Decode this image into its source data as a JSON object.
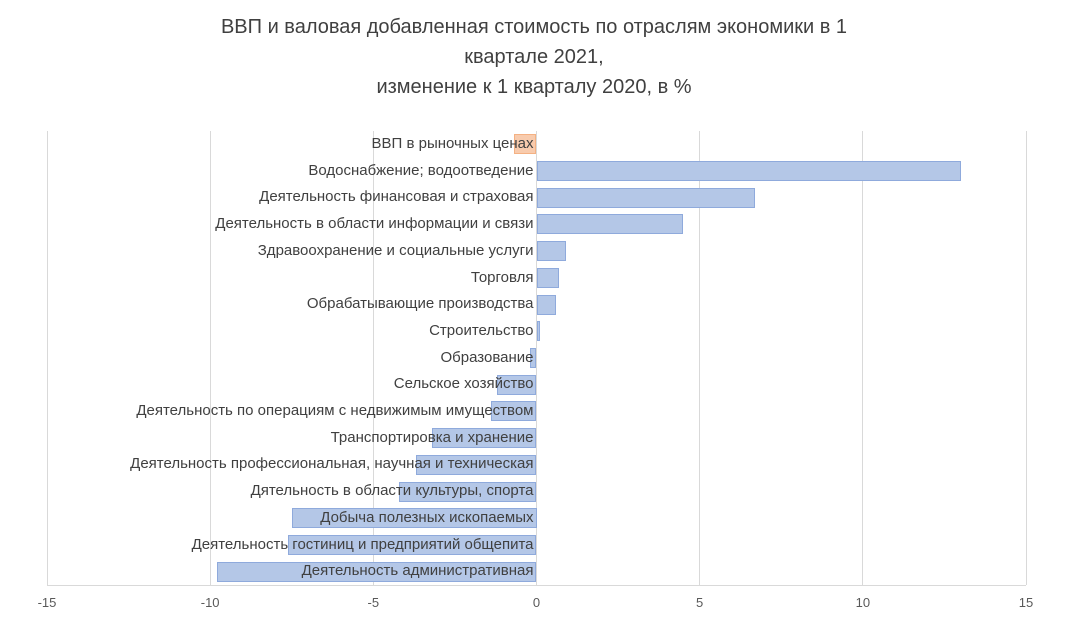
{
  "chart_data": {
    "type": "bar",
    "orientation": "horizontal",
    "title": "ВВП и валовая добавленная стоимость по отраслям экономики в 1\nквартале 2021,\nизменение к 1 кварталу 2020, в %",
    "categories": [
      "ВВП в рыночных ценах",
      "Водоснабжение; водоотведение",
      "Деятельность финансовая и страховая",
      "Деятельность в области информации и связи",
      "Здравоохранение и социальные услуги",
      "Торговля",
      "Обрабатывающие производства",
      "Строительство",
      "Образование",
      "Сельское хозяйство",
      "Деятельность по операциям с недвижимым имуществом",
      "Транспортировка и хранение",
      "Деятельность профессиональная, научная и техническая",
      "Дятельность в области культуры, спорта",
      "Добыча полезных ископаемых",
      "Деятельность гостиниц и предприятий общепита",
      "Деятельность административная"
    ],
    "values": [
      -0.7,
      13.0,
      6.7,
      4.5,
      0.9,
      0.7,
      0.6,
      0.1,
      -0.2,
      -1.2,
      -1.4,
      -3.2,
      -3.7,
      -4.2,
      -7.5,
      -7.6,
      -9.8
    ],
    "xlabel": "",
    "ylabel": "",
    "xlim": [
      -15,
      15
    ],
    "xticks": [
      -15,
      -10,
      -5,
      0,
      5,
      10,
      15
    ],
    "grid": true,
    "legend_position": "none",
    "highlight_index": 0
  },
  "colors": {
    "bar_fill": "#b4c7e7",
    "bar_border": "#8faadc",
    "highlight_fill": "#f8cbad",
    "highlight_border": "#f4b183",
    "gridline": "#d9d9d9",
    "title_text": "#404040",
    "category_text": "#404040",
    "tick_text": "#595959"
  }
}
